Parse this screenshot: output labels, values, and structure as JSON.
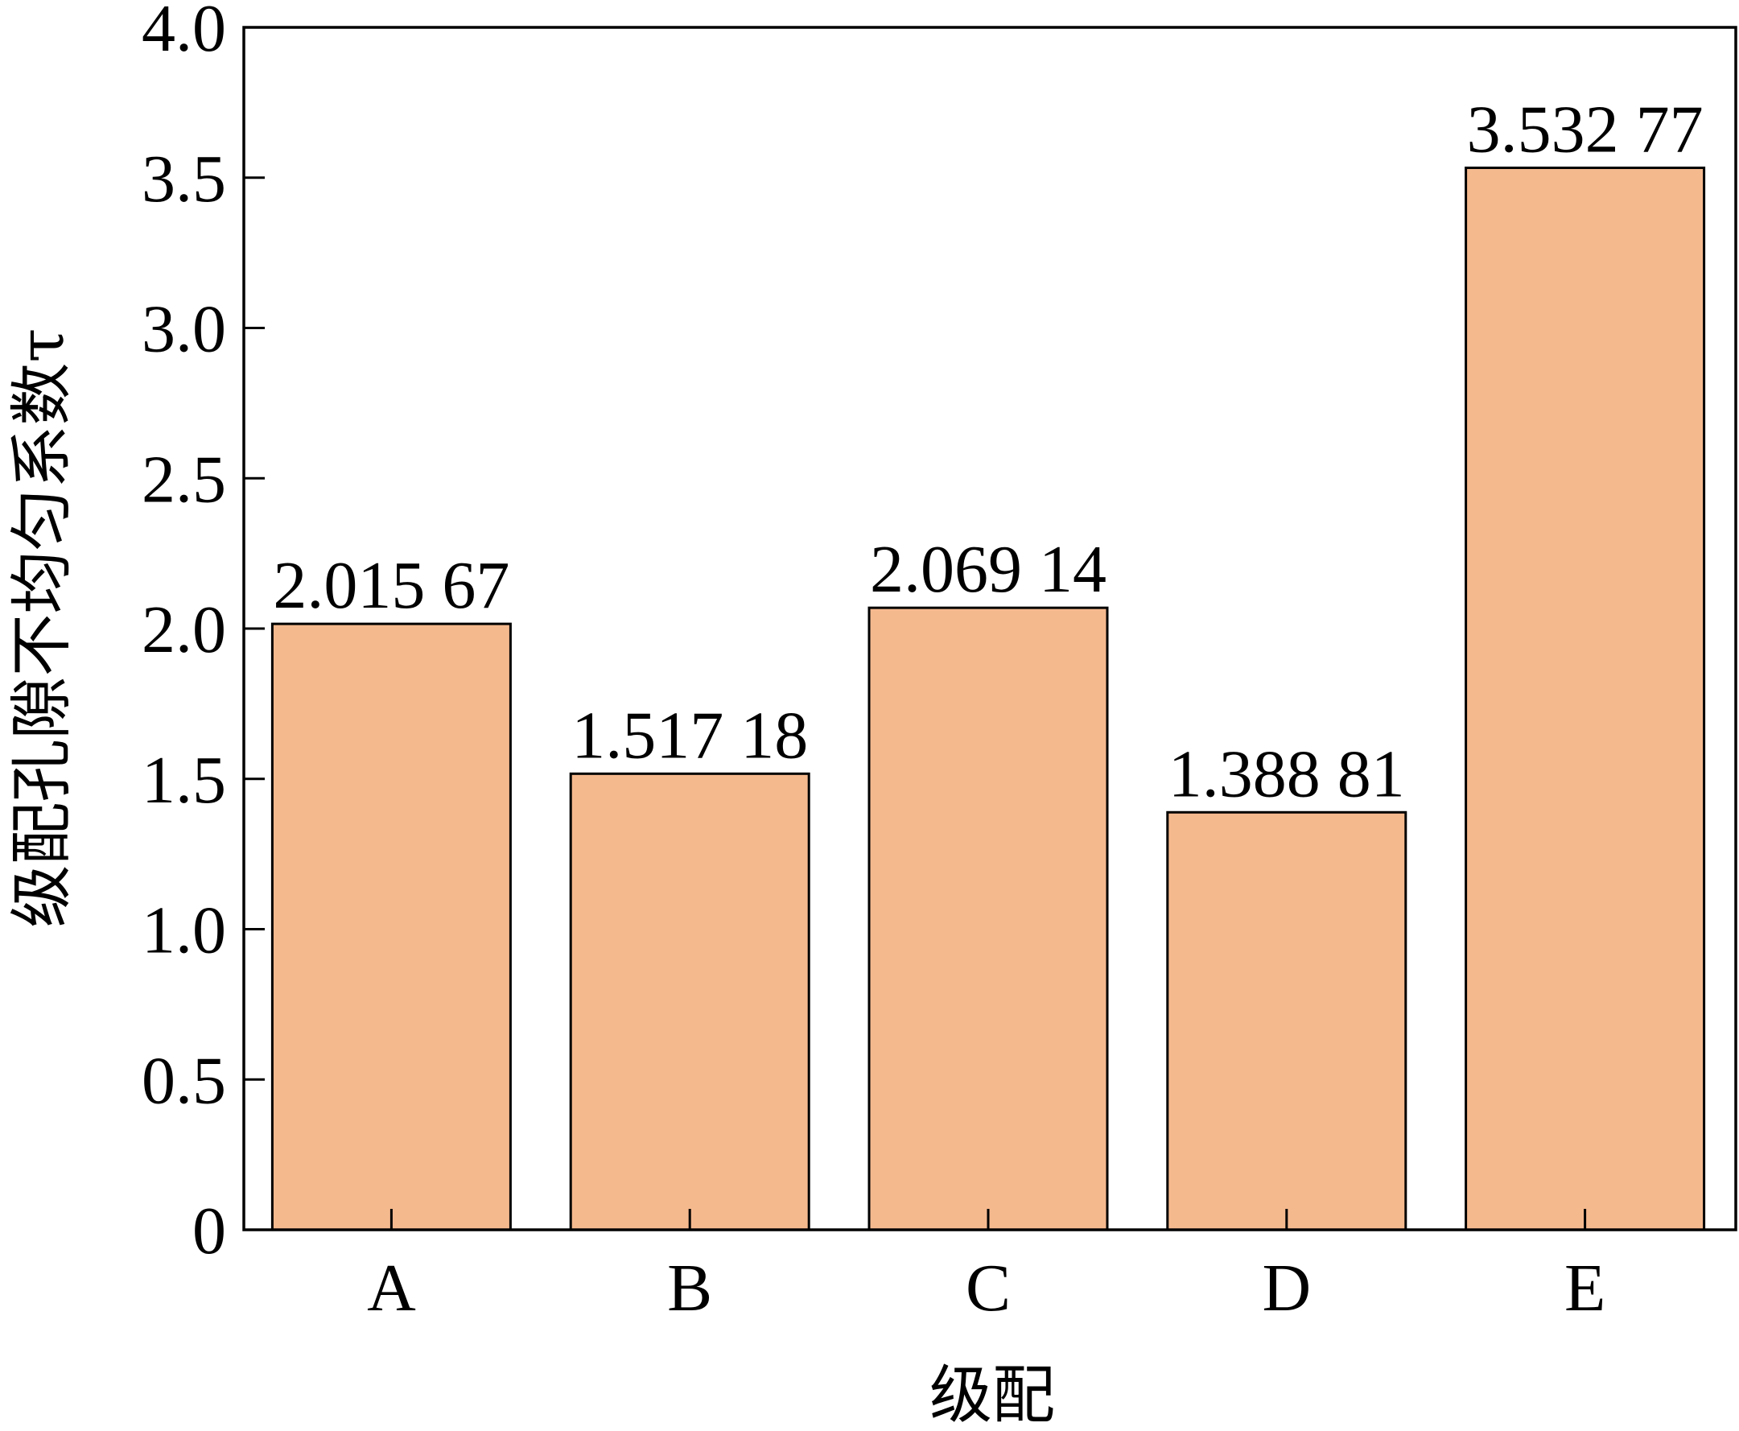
{
  "chart_data": {
    "type": "bar",
    "categories": [
      "A",
      "B",
      "C",
      "D",
      "E"
    ],
    "values": [
      2.01567,
      1.51718,
      2.06914,
      1.38881,
      3.53277
    ],
    "data_labels": [
      "2.015 67",
      "1.517 18",
      "2.069 14",
      "1.388 81",
      "3.532 77"
    ],
    "xlabel": "级配",
    "ylabel": "级配孔隙不均匀系数τ",
    "ylim": [
      0,
      4.0
    ],
    "yticks": [
      0,
      0.5,
      1.0,
      1.5,
      2.0,
      2.5,
      3.0,
      3.5,
      4.0
    ],
    "ytick_labels": [
      "0",
      "0.5",
      "1.0",
      "1.5",
      "2.0",
      "2.5",
      "3.0",
      "3.5",
      "4.0"
    ],
    "grid": false,
    "legend": "none",
    "bar_color": "#f5b98e",
    "bar_edge_color": "#000000"
  }
}
